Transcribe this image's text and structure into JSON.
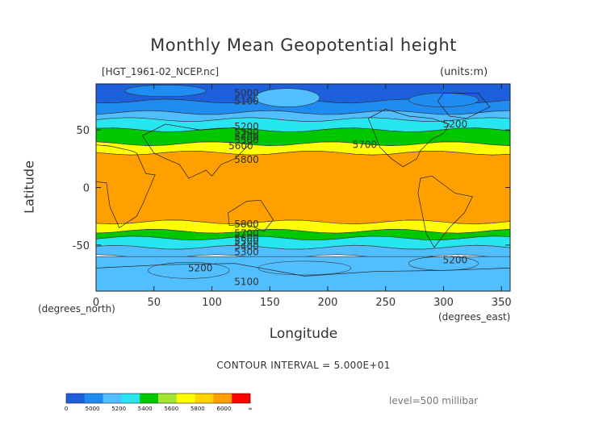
{
  "chart_data": {
    "type": "heatmap",
    "title": "Monthly Mean Geopotential height",
    "subtitle_left": "[HGT_1961-02_NCEP.nc]",
    "subtitle_right": "(units:m)",
    "xlabel": "Longitude",
    "ylabel": "Latitude",
    "x_unit_label": "(degrees_east)",
    "y_unit_label": "(degrees_north)",
    "xlim": [
      0,
      357.5
    ],
    "ylim": [
      -90,
      90
    ],
    "x_ticks": [
      0,
      50,
      100,
      150,
      200,
      250,
      300,
      350
    ],
    "y_ticks": [
      50,
      0,
      -50
    ],
    "contour_interval_text": "CONTOUR INTERVAL = 5.000E+01",
    "level_text": "level=500 millibar",
    "bands": [
      {
        "from": 90,
        "to": 75,
        "value": 4950
      },
      {
        "from": 75,
        "to": 65,
        "value": 5050
      },
      {
        "from": 65,
        "to": 59,
        "value": 5200
      },
      {
        "from": 59,
        "to": 50,
        "value": 5400
      },
      {
        "from": 50,
        "to": 38,
        "value": 5600
      },
      {
        "from": 38,
        "to": 30,
        "value": 5700
      },
      {
        "from": 30,
        "to": -30,
        "value": 5850
      },
      {
        "from": -30,
        "to": -38,
        "value": 5700
      },
      {
        "from": -38,
        "to": -44,
        "value": 5600
      },
      {
        "from": -44,
        "to": -52,
        "value": 5400
      },
      {
        "from": -52,
        "to": -60,
        "value": 5200
      },
      {
        "from": -60,
        "to": -90,
        "value": 5100
      }
    ],
    "contour_labels": [
      {
        "text": "5000",
        "x": 130,
        "y": 82
      },
      {
        "text": "5100",
        "x": 130,
        "y": 75
      },
      {
        "text": "5200",
        "x": 130,
        "y": 53
      },
      {
        "text": "5300",
        "x": 130,
        "y": 48
      },
      {
        "text": "5400",
        "x": 130,
        "y": 44
      },
      {
        "text": "5500",
        "x": 130,
        "y": 41
      },
      {
        "text": "5600",
        "x": 125,
        "y": 36
      },
      {
        "text": "5700",
        "x": 232,
        "y": 37
      },
      {
        "text": "5800",
        "x": 130,
        "y": 24
      },
      {
        "text": "5200",
        "x": 310,
        "y": 55
      },
      {
        "text": "5800",
        "x": 130,
        "y": -32
      },
      {
        "text": "5700",
        "x": 130,
        "y": -40
      },
      {
        "text": "5600",
        "x": 130,
        "y": -44
      },
      {
        "text": "5500",
        "x": 130,
        "y": -47
      },
      {
        "text": "5400",
        "x": 130,
        "y": -51
      },
      {
        "text": "5300",
        "x": 130,
        "y": -56
      },
      {
        "text": "5200",
        "x": 90,
        "y": -70
      },
      {
        "text": "5200",
        "x": 310,
        "y": -63
      },
      {
        "text": "5100",
        "x": 130,
        "y": -82
      }
    ],
    "legend": {
      "colors": [
        "#1e5fdc",
        "#1e8cf0",
        "#50beff",
        "#28e6f0",
        "#00c800",
        "#a0e632",
        "#ffff00",
        "#ffd200",
        "#ffa000",
        "#ff0000"
      ],
      "tick_labels": [
        "0",
        "5000",
        "5200",
        "5400",
        "5600",
        "5800",
        "6000",
        "∞"
      ]
    }
  }
}
